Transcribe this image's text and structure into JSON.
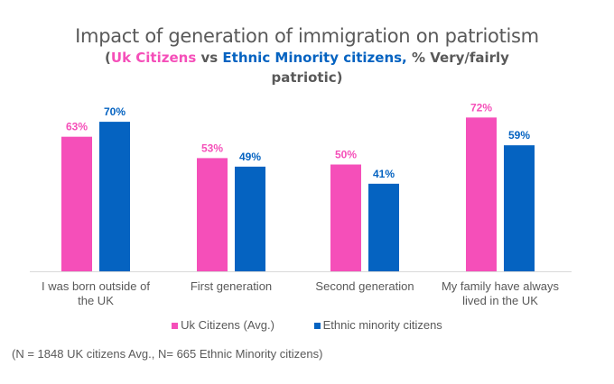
{
  "chart_data": {
    "type": "bar",
    "title": "Impact of generation of immigration on patriotism",
    "subtitle": {
      "open": "(",
      "part1": "Uk Citizens",
      "mid": " vs ",
      "part2": "Ethnic Minority citizens,",
      "rest": " % Very/fairly patriotic)"
    },
    "categories": [
      "I was born outside of the UK",
      "First generation",
      "Second generation",
      "My family have always lived in the UK"
    ],
    "series": [
      {
        "name": "Uk Citizens (Avg.)",
        "color": "#F54FB9",
        "values": [
          63,
          53,
          50,
          72
        ],
        "labels": [
          "63%",
          "53%",
          "50%",
          "72%"
        ]
      },
      {
        "name": "Ethnic minority citizens",
        "color": "#0563C1",
        "values": [
          70,
          49,
          41,
          59
        ],
        "labels": [
          "70%",
          "49%",
          "41%",
          "59%"
        ]
      }
    ],
    "ylim": [
      0,
      100
    ],
    "xlabel": "",
    "ylabel": "",
    "grid": false,
    "legend": "bottom-center",
    "note": "(N = 1848 UK citizens Avg., N= 665 Ethnic Minority citizens)"
  }
}
